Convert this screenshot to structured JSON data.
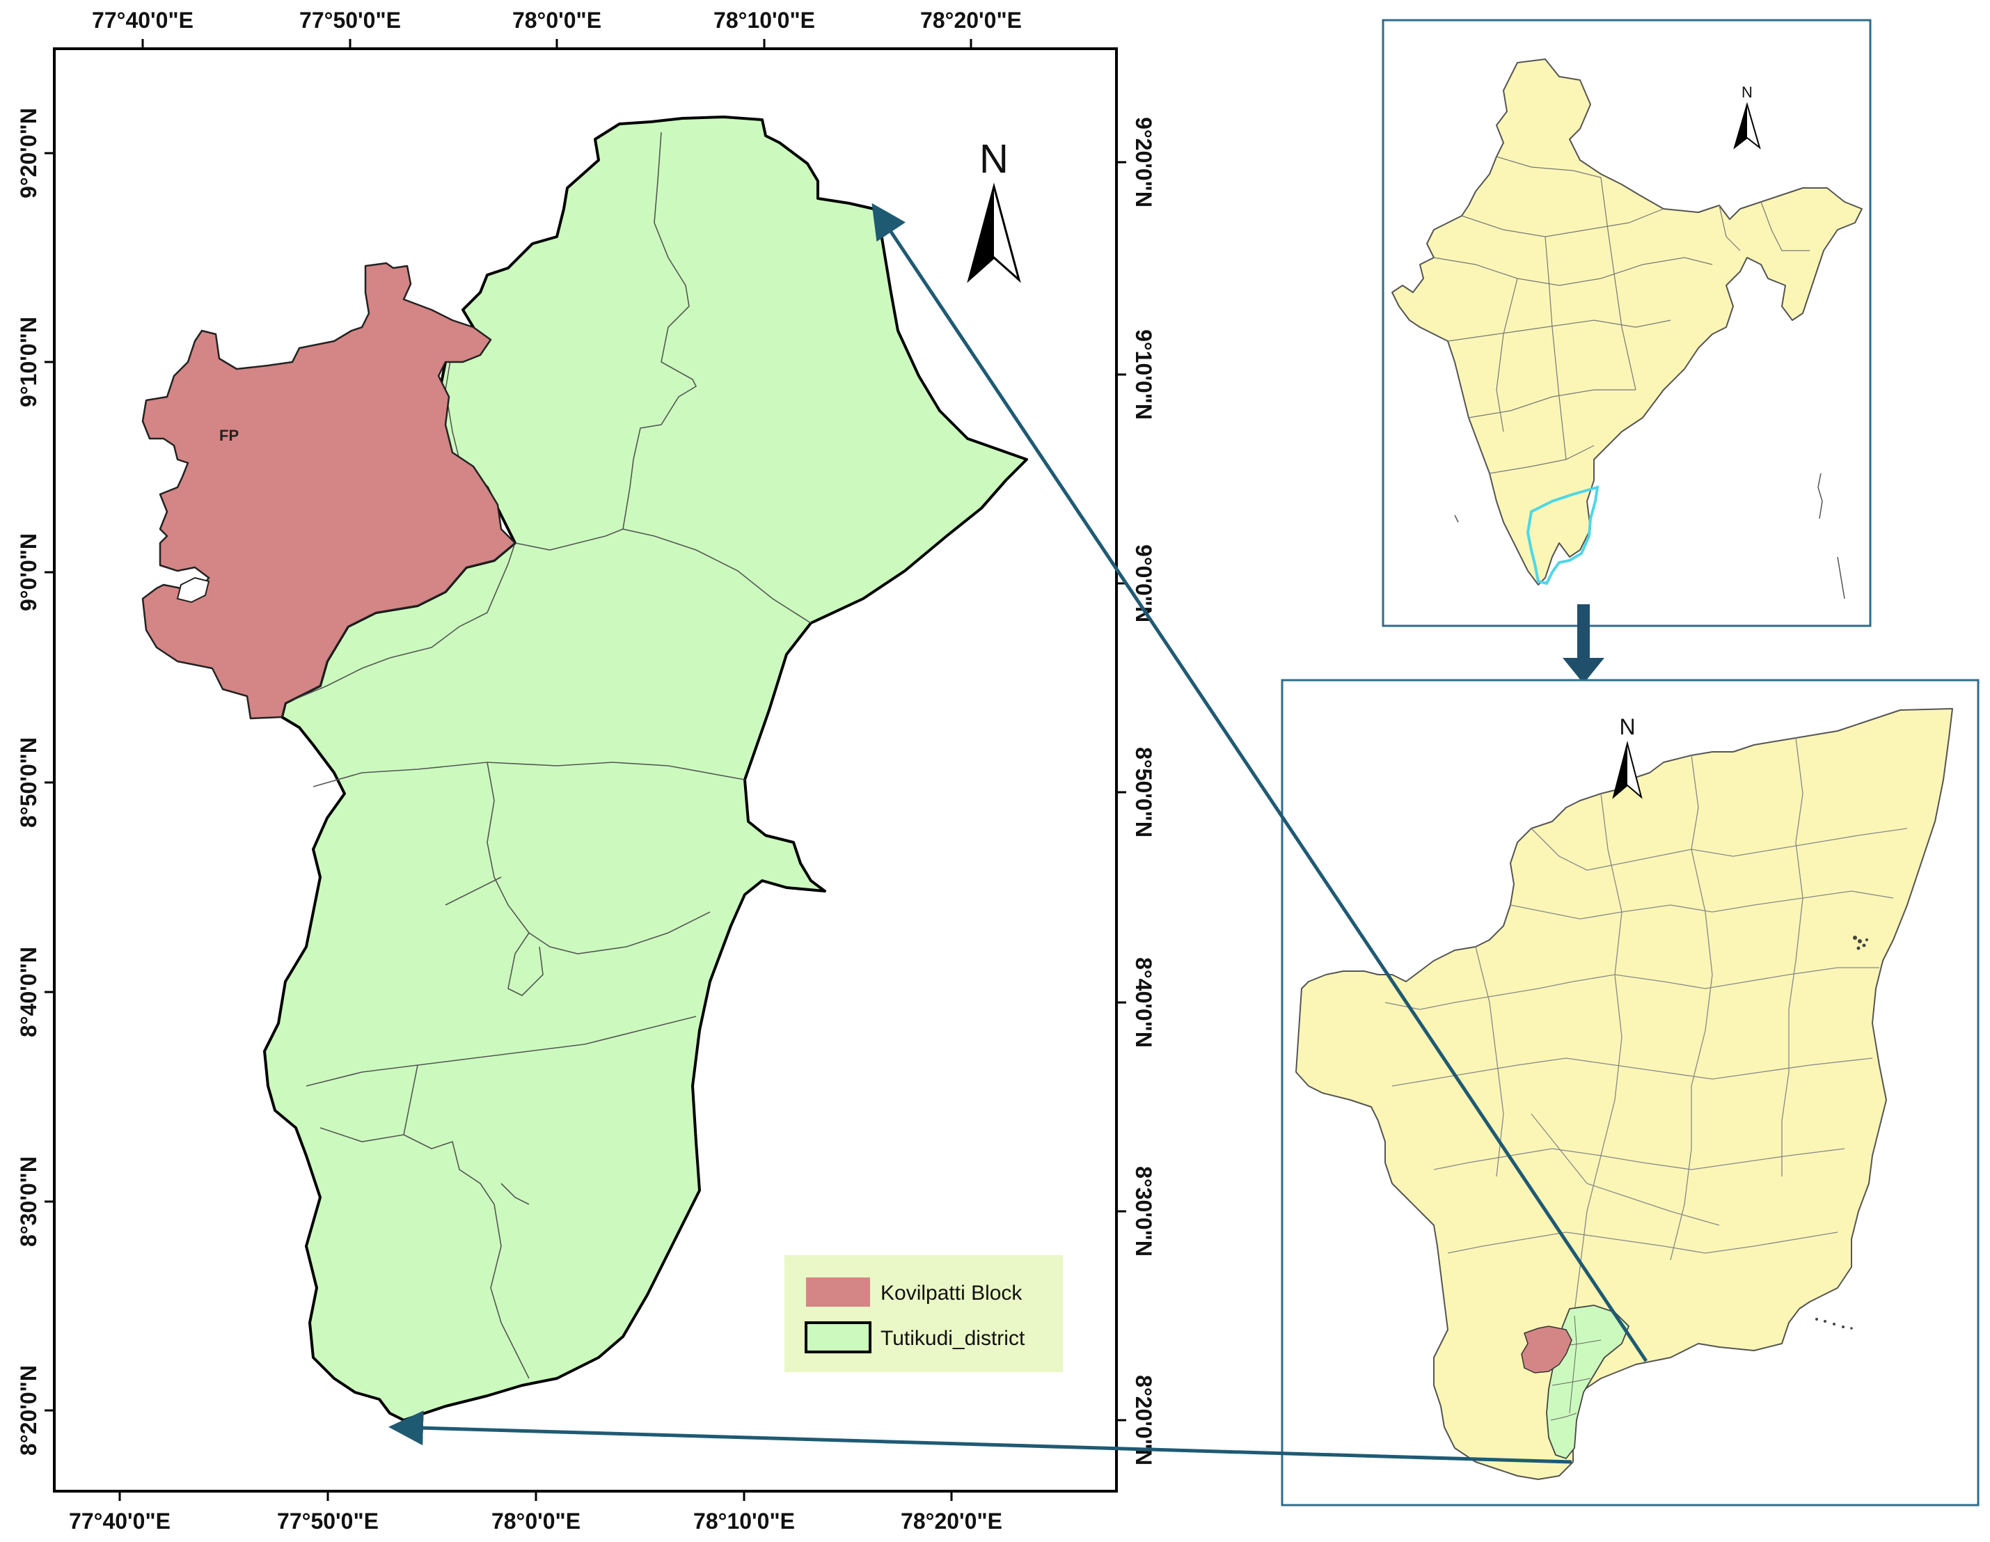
{
  "main_map": {
    "top_lon_labels": [
      "77°40'0\"E",
      "77°50'0\"E",
      "78°0'0\"E",
      "78°10'0\"E",
      "78°20'0\"E"
    ],
    "bottom_lon_labels": [
      "77°40'0\"E",
      "77°50'0\"E",
      "78°0'0\"E",
      "78°10'0\"E",
      "78°20'0\"E"
    ],
    "left_lat_labels": [
      "9°20'0\"N",
      "9°10'0\"N",
      "9°0'0\"N",
      "8°50'0\"N",
      "8°40'0\"N",
      "8°30'0\"N",
      "8°20'0\"N"
    ],
    "right_lat_labels": [
      "9°20'0\"N",
      "9°10'0\"N",
      "9°0'0\"N",
      "8°50'0\"N",
      "8°40'0\"N",
      "8°30'0\"N",
      "8°20'0\"N"
    ],
    "north_label": "N",
    "fp_label": "FP",
    "legend": [
      {
        "label": "Kovilpatti Block",
        "color": "#d48585"
      },
      {
        "label": "Tutikudi_district",
        "color": "#ccfabe"
      }
    ]
  },
  "india_inset": {
    "north_label": "N",
    "highlight_color": "#4fd6e8",
    "fill": "#fbf6b6"
  },
  "tamil_nadu_inset": {
    "north_label": "N",
    "fill": "#fbf6b6",
    "district_color": "#ccfabe",
    "block_color": "#d48585"
  },
  "colors": {
    "arrow": "#1f5a73",
    "frame": "#2f6d8a",
    "kovilpatti": "#d48585",
    "district": "#ccfabe",
    "land": "#fbf6b6"
  }
}
